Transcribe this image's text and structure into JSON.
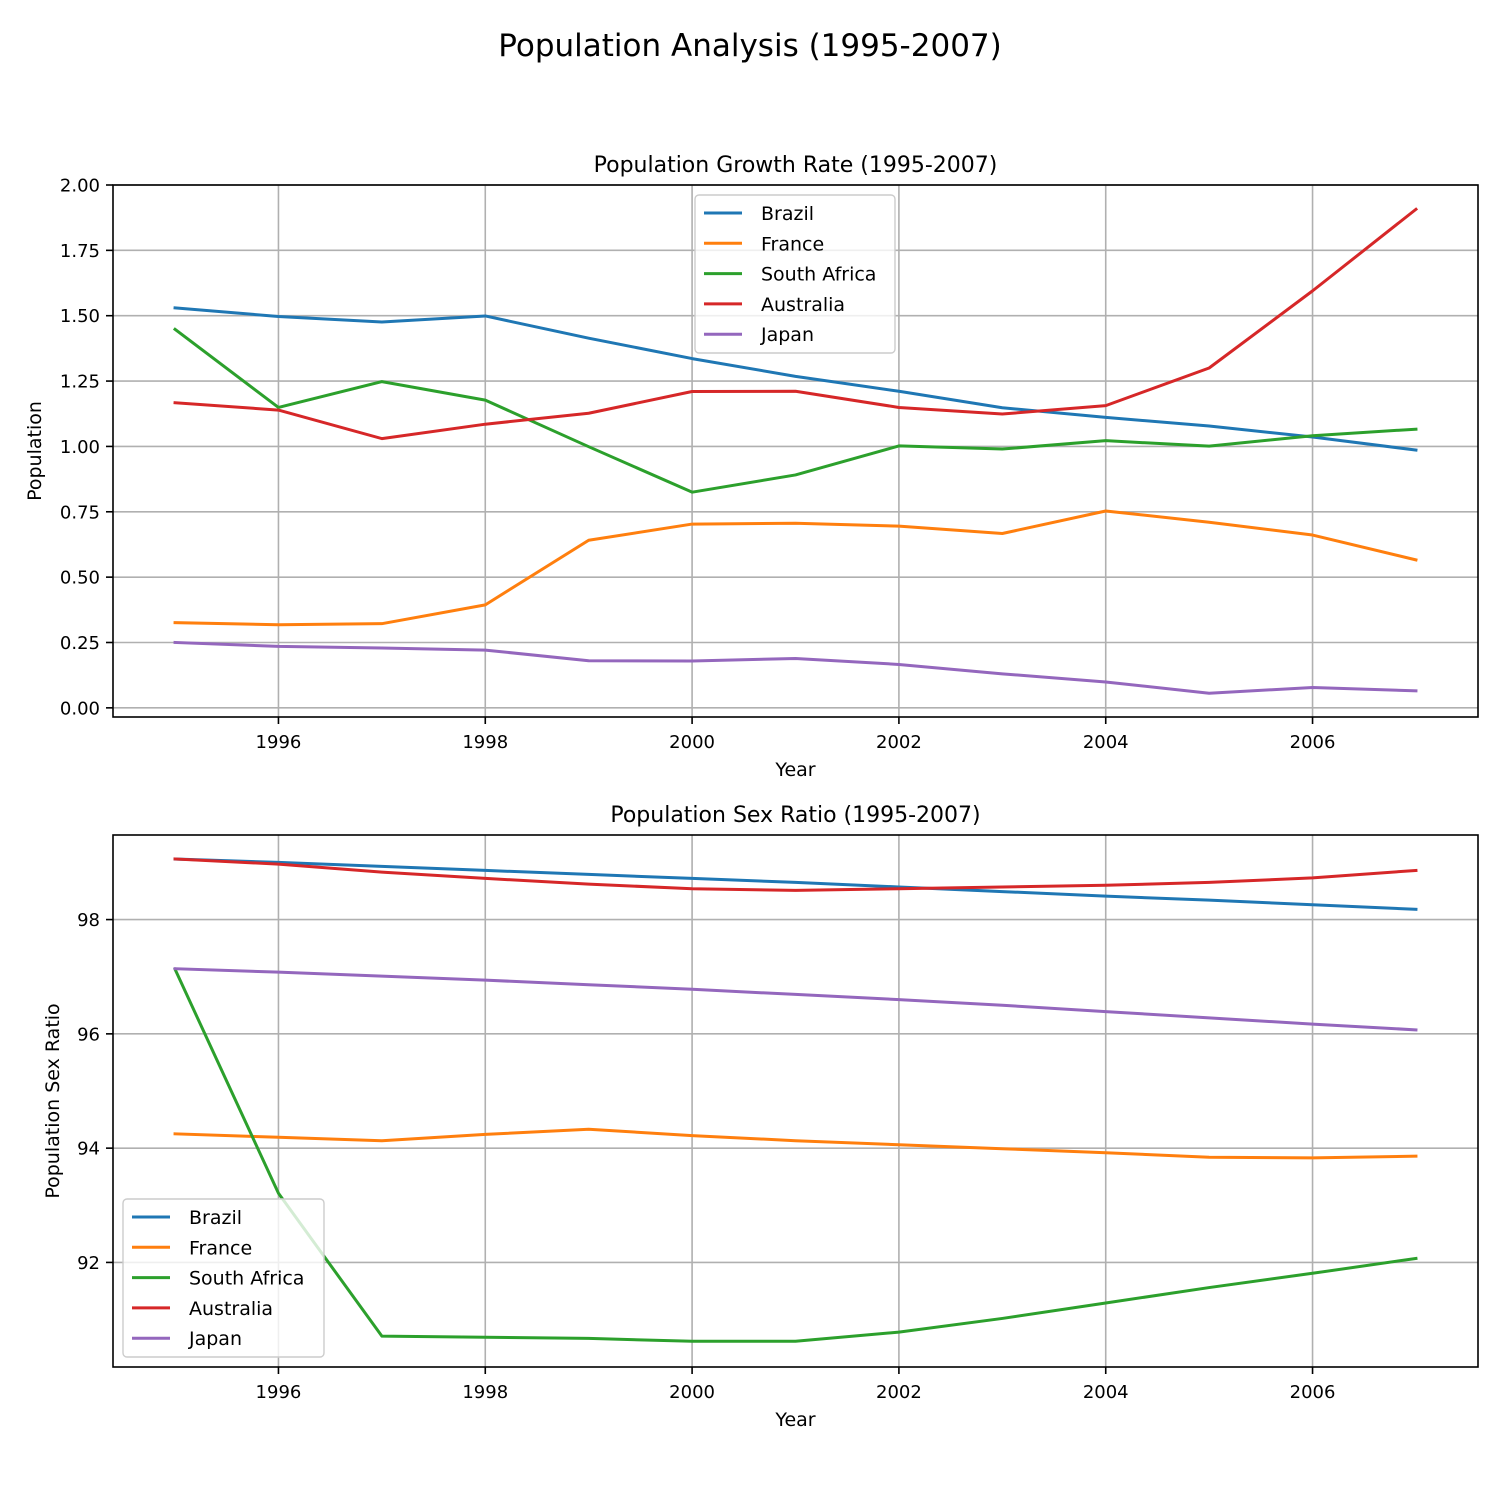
{
  "figure": {
    "title": "Population Analysis (1995-2007)"
  },
  "colors": {
    "Brazil": "#1f77b4",
    "France": "#ff7f0e",
    "South Africa": "#2ca02c",
    "Australia": "#d62728",
    "Japan": "#9467bd"
  },
  "chart_data": [
    {
      "type": "line",
      "title": "Population Growth Rate (1995-2007)",
      "xlabel": "Year",
      "ylabel": "Population",
      "x": [
        1995,
        1996,
        1997,
        1998,
        1999,
        2000,
        2001,
        2002,
        2003,
        2004,
        2005,
        2006,
        2007
      ],
      "xlim": [
        1994.4,
        2007.6
      ],
      "ylim": [
        -0.035,
        2.0
      ],
      "xticks": [
        1996,
        1998,
        2000,
        2002,
        2004,
        2006
      ],
      "yticks": [
        0.0,
        0.25,
        0.5,
        0.75,
        1.0,
        1.25,
        1.5,
        1.75,
        2.0
      ],
      "ytick_labels": [
        "0.00",
        "0.25",
        "0.50",
        "0.75",
        "1.00",
        "1.25",
        "1.50",
        "1.75",
        "2.00"
      ],
      "grid": true,
      "legend_position": "upper-center",
      "series": [
        {
          "name": "Brazil",
          "values": [
            1.53,
            1.497,
            1.476,
            1.499,
            1.414,
            1.336,
            1.268,
            1.211,
            1.148,
            1.111,
            1.078,
            1.036,
            0.986
          ]
        },
        {
          "name": "France",
          "values": [
            0.326,
            0.318,
            0.322,
            0.394,
            0.641,
            0.703,
            0.706,
            0.695,
            0.667,
            0.753,
            0.71,
            0.661,
            0.566
          ]
        },
        {
          "name": "South Africa",
          "values": [
            1.448,
            1.149,
            1.248,
            1.177,
            0.999,
            0.825,
            0.891,
            1.002,
            0.99,
            1.022,
            1.001,
            1.041,
            1.066
          ]
        },
        {
          "name": "Australia",
          "values": [
            1.167,
            1.139,
            1.03,
            1.085,
            1.127,
            1.21,
            1.211,
            1.149,
            1.124,
            1.156,
            1.3,
            1.595,
            1.907
          ]
        },
        {
          "name": "Japan",
          "values": [
            0.25,
            0.235,
            0.229,
            0.221,
            0.18,
            0.179,
            0.189,
            0.166,
            0.13,
            0.099,
            0.056,
            0.078,
            0.065
          ]
        }
      ]
    },
    {
      "type": "line",
      "title": "Population Sex Ratio (1995-2007)",
      "xlabel": "Year",
      "ylabel": "Population Sex Ratio",
      "x": [
        1995,
        1996,
        1997,
        1998,
        1999,
        2000,
        2001,
        2002,
        2003,
        2004,
        2005,
        2006,
        2007
      ],
      "xlim": [
        1994.4,
        2007.6
      ],
      "ylim": [
        90.17,
        99.48
      ],
      "xticks": [
        1996,
        1998,
        2000,
        2002,
        2004,
        2006
      ],
      "yticks": [
        92,
        94,
        96,
        98
      ],
      "ytick_labels": [
        "92",
        "94",
        "96",
        "98"
      ],
      "grid": true,
      "legend_position": "lower-left",
      "series": [
        {
          "name": "Brazil",
          "values": [
            99.06,
            99.0,
            98.93,
            98.86,
            98.79,
            98.72,
            98.65,
            98.57,
            98.49,
            98.41,
            98.34,
            98.26,
            98.18
          ]
        },
        {
          "name": "France",
          "values": [
            94.25,
            94.19,
            94.13,
            94.24,
            94.33,
            94.22,
            94.13,
            94.06,
            93.99,
            93.92,
            93.84,
            93.83,
            93.86
          ]
        },
        {
          "name": "South Africa",
          "values": [
            97.13,
            93.21,
            90.71,
            90.69,
            90.67,
            90.62,
            90.62,
            90.78,
            91.02,
            91.29,
            91.56,
            91.81,
            92.07
          ]
        },
        {
          "name": "Australia",
          "values": [
            99.06,
            98.97,
            98.83,
            98.72,
            98.62,
            98.54,
            98.51,
            98.54,
            98.57,
            98.6,
            98.65,
            98.73,
            98.86
          ]
        },
        {
          "name": "Japan",
          "values": [
            97.14,
            97.08,
            97.01,
            96.94,
            96.86,
            96.78,
            96.69,
            96.6,
            96.5,
            96.39,
            96.28,
            96.17,
            96.07
          ]
        }
      ]
    }
  ]
}
